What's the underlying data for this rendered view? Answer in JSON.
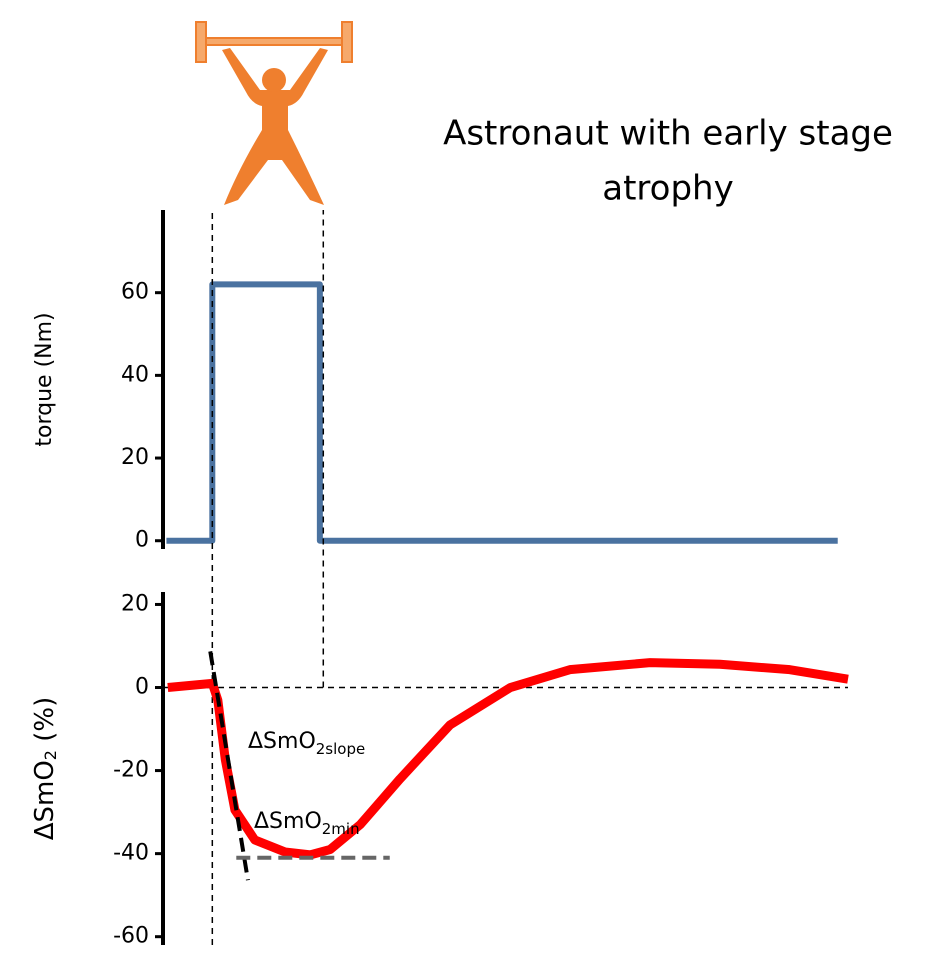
{
  "chart_data": [
    {
      "type": "line",
      "title": "Astronaut with early stage atrophy",
      "ylabel": "torque (Nm)",
      "color": "#4a72a0",
      "x": [
        0.5,
        7.2,
        7.2,
        22.9,
        22.9,
        98.5
      ],
      "values": [
        0,
        0,
        62,
        62,
        0,
        0
      ],
      "xlim": [
        0,
        100
      ],
      "ylim": [
        -2,
        80
      ],
      "yticks": [
        0,
        20,
        40,
        60
      ]
    },
    {
      "type": "line",
      "ylabel": [
        "ΔSmO",
        "2",
        " (%)"
      ],
      "color": "#ff0000",
      "x": [
        0.7,
        7.2,
        8,
        9.1,
        10.5,
        13.4,
        17.8,
        21.5,
        24.4,
        28.8,
        34.6,
        41.9,
        50.7,
        59.4,
        71.1,
        81.3,
        91.5,
        100
      ],
      "values": [
        0,
        1,
        -3,
        -17.4,
        -29.5,
        -36.7,
        -39.6,
        -40.3,
        -39,
        -33,
        -22,
        -9,
        0,
        4.3,
        6,
        5.6,
        4.3,
        2
      ],
      "xlim": [
        0,
        100
      ],
      "ylim": [
        -62,
        23
      ],
      "yticks": [
        -60,
        -40,
        -20,
        0,
        20
      ],
      "markers_x": [
        7.2,
        23.4
      ],
      "lines": [
        {
          "x": [
            6.9,
            12.4
          ],
          "values": [
            8.7,
            -46.4
          ],
          "color": "#000000",
          "label": [
            "ΔSmO",
            "2slope"
          ]
        },
        {
          "x": [
            10.7,
            33.1
          ],
          "values": [
            -41,
            -41
          ],
          "color": "#666666",
          "label": [
            "ΔSmO",
            "2min"
          ]
        }
      ]
    }
  ]
}
